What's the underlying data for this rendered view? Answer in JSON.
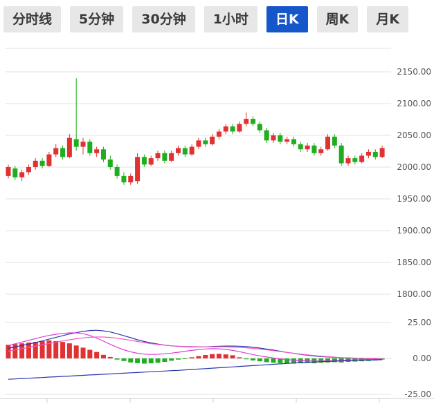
{
  "toolbar": {
    "active_index": 4,
    "active_bg": "#1656cb",
    "active_color": "#ffffff",
    "inactive_bg": "#e7e7e7",
    "inactive_color": "#3a3a3a",
    "tabs": [
      {
        "label": "分时线"
      },
      {
        "label": "5分钟"
      },
      {
        "label": "30分钟"
      },
      {
        "label": "1小时"
      },
      {
        "label": "日K"
      },
      {
        "label": "周K"
      },
      {
        "label": "月K"
      }
    ]
  },
  "chart_data": {
    "type": "candlestick",
    "title": "",
    "grid_on": true,
    "up_color": "#e03232",
    "down_color": "#1fae1f",
    "grid_color": "#e2e2e2",
    "axis_line_color": "#cccccc",
    "label_color": "#555555",
    "main_axis": {
      "range": [
        1795,
        2190
      ],
      "labels": [
        "2150.00",
        "2100.00",
        "2050.00",
        "2000.00",
        "1950.00",
        "1900.00",
        "1850.00",
        "1800.00"
      ],
      "values": [
        2150,
        2100,
        2050,
        2000,
        1950,
        1900,
        1850,
        1800
      ]
    },
    "macd_axis": {
      "range": [
        -27,
        27
      ],
      "labels": [
        "25.00",
        "0.00",
        "-25.00"
      ],
      "values": [
        25,
        0,
        -25
      ]
    },
    "candles": [
      [
        1986,
        2004,
        1982,
        2000
      ],
      [
        1998,
        2002,
        1980,
        1984
      ],
      [
        1984,
        1996,
        1978,
        1992
      ],
      [
        1992,
        2004,
        1988,
        2000
      ],
      [
        2000,
        2014,
        1996,
        2010
      ],
      [
        2010,
        2014,
        1998,
        2002
      ],
      [
        2002,
        2024,
        2000,
        2020
      ],
      [
        2020,
        2036,
        2016,
        2030
      ],
      [
        2030,
        2034,
        2012,
        2016
      ],
      [
        2016,
        2052,
        2014,
        2046
      ],
      [
        2044,
        2140,
        2026,
        2032
      ],
      [
        2032,
        2046,
        2020,
        2040
      ],
      [
        2040,
        2044,
        2018,
        2022
      ],
      [
        2022,
        2032,
        2016,
        2028
      ],
      [
        2028,
        2032,
        2008,
        2012
      ],
      [
        2012,
        2018,
        1996,
        2000
      ],
      [
        2000,
        2004,
        1982,
        1986
      ],
      [
        1986,
        1992,
        1972,
        1976
      ],
      [
        1976,
        1990,
        1972,
        1986
      ],
      [
        1978,
        2022,
        1974,
        2016
      ],
      [
        2016,
        2020,
        2000,
        2004
      ],
      [
        2004,
        2018,
        2002,
        2014
      ],
      [
        2014,
        2026,
        2010,
        2022
      ],
      [
        2022,
        2026,
        2006,
        2010
      ],
      [
        2010,
        2026,
        2008,
        2022
      ],
      [
        2022,
        2034,
        2018,
        2030
      ],
      [
        2030,
        2034,
        2016,
        2020
      ],
      [
        2020,
        2036,
        2018,
        2032
      ],
      [
        2032,
        2046,
        2028,
        2042
      ],
      [
        2042,
        2046,
        2032,
        2036
      ],
      [
        2036,
        2052,
        2034,
        2048
      ],
      [
        2048,
        2060,
        2044,
        2056
      ],
      [
        2056,
        2068,
        2052,
        2064
      ],
      [
        2064,
        2068,
        2052,
        2056
      ],
      [
        2056,
        2072,
        2054,
        2068
      ],
      [
        2068,
        2086,
        2064,
        2076
      ],
      [
        2076,
        2080,
        2064,
        2068
      ],
      [
        2068,
        2072,
        2054,
        2058
      ],
      [
        2058,
        2062,
        2038,
        2042
      ],
      [
        2042,
        2054,
        2038,
        2050
      ],
      [
        2050,
        2054,
        2036,
        2040
      ],
      [
        2040,
        2048,
        2036,
        2044
      ],
      [
        2044,
        2048,
        2032,
        2036
      ],
      [
        2036,
        2040,
        2024,
        2028
      ],
      [
        2028,
        2038,
        2024,
        2034
      ],
      [
        2034,
        2038,
        2018,
        2022
      ],
      [
        2022,
        2032,
        2018,
        2028
      ],
      [
        2028,
        2052,
        2026,
        2048
      ],
      [
        2048,
        2052,
        2030,
        2034
      ],
      [
        2034,
        2038,
        2002,
        2006
      ],
      [
        2006,
        2018,
        2002,
        2014
      ],
      [
        2014,
        2018,
        2004,
        2008
      ],
      [
        2008,
        2022,
        2006,
        2018
      ],
      [
        2018,
        2028,
        2014,
        2024
      ],
      [
        2024,
        2028,
        2012,
        2016
      ],
      [
        2016,
        2034,
        2014,
        2030
      ]
    ],
    "macd": {
      "histogram": [
        9.5,
        10,
        10.5,
        11,
        11.5,
        12,
        12.5,
        12,
        11.5,
        10.5,
        9,
        7.5,
        6,
        4.5,
        2.5,
        1,
        -0.8,
        -1.8,
        -2.8,
        -3.3,
        -3.6,
        -3.4,
        -3,
        -2.4,
        -1.6,
        -0.8,
        -0.3,
        0.8,
        1.6,
        2.4,
        3,
        3.2,
        2.8,
        2.2,
        0.8,
        -0.6,
        -1.4,
        -2,
        -2.6,
        -3,
        -3.3,
        -3.5,
        -3.6,
        -3.4,
        -3.2,
        -3.4,
        -3,
        -2.8,
        -2.6,
        -2.8,
        -2.4,
        -2.2,
        -2,
        -1.8,
        -1.4,
        -0.8
      ],
      "lines": [
        {
          "name": "dea",
          "color": "#2a35a8",
          "values": [
            7,
            8,
            9,
            10,
            11,
            12.2,
            13.4,
            14.6,
            15.8,
            17,
            18,
            18.8,
            19.4,
            19.6,
            19.2,
            18.4,
            17.2,
            15.8,
            14.4,
            13,
            11.8,
            10.8,
            10,
            9.3,
            8.8,
            8.4,
            8.1,
            8,
            8,
            8.1,
            8.3,
            8.5,
            8.6,
            8.6,
            8.5,
            8.2,
            7.8,
            7.2,
            6.5,
            5.8,
            5,
            4.2,
            3.5,
            2.8,
            2.2,
            1.7,
            1.3,
            1,
            0.7,
            0.5,
            0.3,
            0.2,
            0.1,
            0,
            0,
            -0.1
          ]
        },
        {
          "name": "dif",
          "color": "#df3ade",
          "values": [
            9,
            10.2,
            11.4,
            12.6,
            13.8,
            15,
            16,
            16.8,
            17.4,
            17.8,
            17.8,
            17.2,
            16,
            14.2,
            12,
            9.8,
            7.8,
            6,
            4.6,
            3.6,
            3,
            2.8,
            2.9,
            3.2,
            3.7,
            4.3,
            5,
            5.6,
            6.2,
            6.6,
            6.8,
            6.7,
            6.3,
            5.6,
            4.7,
            3.7,
            2.7,
            1.8,
            1,
            0.3,
            -0.3,
            -0.8,
            -1.2,
            -1.5,
            -1.7,
            -1.8,
            -1.8,
            -1.7,
            -1.6,
            -1.4,
            -1.2,
            -1,
            -0.8,
            -0.6,
            -0.5,
            -0.4
          ]
        },
        {
          "name": "dif-slow",
          "color": "#f457c4",
          "values": [
            5,
            5.9,
            6.8,
            7.7,
            8.6,
            9.5,
            10.4,
            11.3,
            12.2,
            13,
            13.7,
            14.3,
            14.7,
            14.9,
            14.9,
            14.6,
            14.1,
            13.4,
            12.6,
            11.8,
            11,
            10.3,
            9.7,
            9.2,
            8.8,
            8.5,
            8.3,
            8.2,
            8.1,
            8.1,
            8.1,
            8.1,
            8,
            7.9,
            7.7,
            7.4,
            7,
            6.5,
            6,
            5.4,
            4.8,
            4.2,
            3.6,
            3,
            2.5,
            2,
            1.6,
            1.2,
            0.9,
            0.6,
            0.4,
            0.2,
            0.1,
            0,
            -0.1,
            -0.1
          ]
        },
        {
          "name": "base",
          "color": "#2a35a8",
          "values": [
            -14.5,
            -14.3,
            -14,
            -13.8,
            -13.5,
            -13.3,
            -13,
            -12.8,
            -12.5,
            -12.3,
            -12,
            -11.8,
            -11.5,
            -11.3,
            -11,
            -10.8,
            -10.5,
            -10.3,
            -10,
            -9.8,
            -9.5,
            -9.3,
            -9,
            -8.8,
            -8.5,
            -8.3,
            -8,
            -7.7,
            -7.4,
            -7.1,
            -6.8,
            -6.5,
            -6.2,
            -5.9,
            -5.6,
            -5.3,
            -5,
            -4.7,
            -4.4,
            -4.1,
            -3.8,
            -3.5,
            -3.2,
            -2.9,
            -2.7,
            -2.5,
            -2.3,
            -2.1,
            -1.9,
            -1.7,
            -1.5,
            -1.3,
            -1.2,
            -1.1,
            -1,
            -0.9
          ]
        }
      ]
    }
  }
}
